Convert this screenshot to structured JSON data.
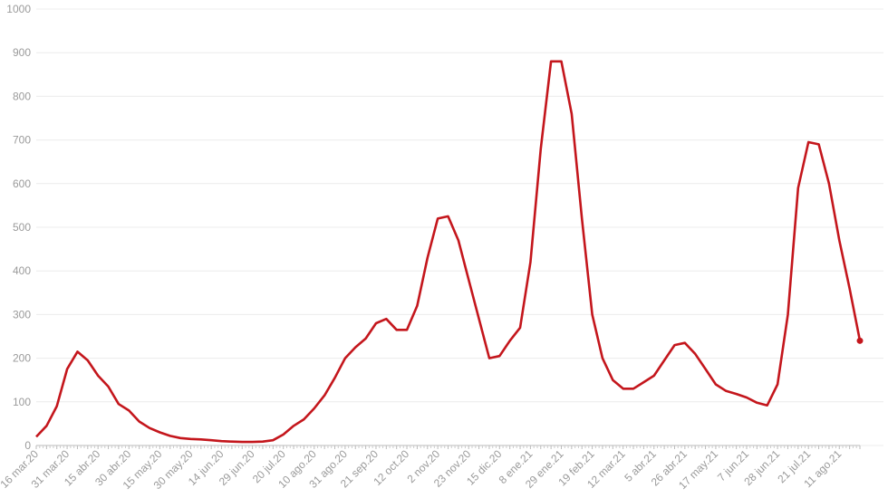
{
  "chart_data": {
    "type": "line",
    "categories": [
      "16 mar.20",
      null,
      null,
      "31 mar.20",
      null,
      null,
      "15 abr.20",
      null,
      null,
      "30 abr.20",
      null,
      null,
      "15 may.20",
      null,
      null,
      "30 may.20",
      null,
      null,
      "14 jun.20",
      null,
      null,
      "29 jun.20",
      null,
      null,
      "20 jul.20",
      null,
      null,
      "10 ago.20",
      null,
      null,
      "31 ago.20",
      null,
      null,
      "21 sep.20",
      null,
      null,
      "12 oct.20",
      null,
      null,
      "2 nov.20",
      null,
      null,
      "23 nov.20",
      null,
      null,
      "15 dic.20",
      null,
      null,
      "8 ene.21",
      null,
      null,
      "29 ene.21",
      null,
      null,
      "19 feb.21",
      null,
      null,
      "12 mar.21",
      null,
      null,
      "5 abr.21",
      null,
      null,
      "26 abr.21",
      null,
      null,
      "17 may.21",
      null,
      null,
      "7 jun.21",
      null,
      null,
      "28 jun.21",
      null,
      null,
      "21 jul.21",
      null,
      null,
      "11 ago.21",
      null,
      null
    ],
    "values": [
      20,
      45,
      90,
      175,
      215,
      195,
      160,
      135,
      95,
      80,
      55,
      40,
      30,
      22,
      17,
      15,
      14,
      12,
      10,
      9,
      8,
      8,
      9,
      12,
      25,
      45,
      60,
      85,
      115,
      155,
      200,
      225,
      245,
      280,
      290,
      265,
      265,
      320,
      430,
      520,
      525,
      470,
      380,
      290,
      200,
      205,
      240,
      270,
      420,
      680,
      880,
      880,
      760,
      520,
      300,
      200,
      150,
      130,
      130,
      145,
      160,
      195,
      230,
      235,
      210,
      175,
      140,
      125,
      118,
      110,
      98,
      92,
      140,
      300,
      590,
      695,
      690,
      600,
      470,
      360,
      240
    ],
    "color": "#c4161c",
    "ylim": [
      0,
      1000
    ],
    "yticks": [
      0,
      100,
      200,
      300,
      400,
      500,
      600,
      700,
      800,
      900,
      1000
    ],
    "grid": true
  }
}
